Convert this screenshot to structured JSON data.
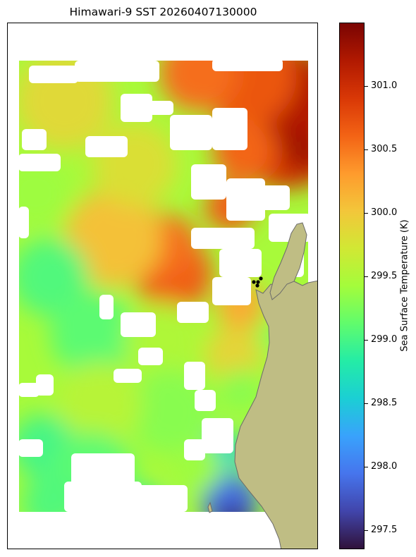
{
  "title": "Himawari-9 SST 20260407130000",
  "colorbar": {
    "label": "Sea Surface Temperature (K)",
    "ticks": [
      "297.5",
      "298.0",
      "298.5",
      "299.0",
      "299.5",
      "300.0",
      "300.5",
      "301.0"
    ],
    "tick_values": [
      297.5,
      298.0,
      298.5,
      299.0,
      299.5,
      300.0,
      300.5,
      301.0
    ],
    "vmin": 297.35,
    "vmax": 301.5,
    "colormap": "turbo",
    "stops": [
      "#30123b",
      "#4145ab",
      "#4675ed",
      "#39a2fc",
      "#1bcfd4",
      "#24eca6",
      "#61fc6c",
      "#a4fc3b",
      "#d1e834",
      "#f3c63a",
      "#fe9b2d",
      "#f36315",
      "#d93806",
      "#b11901",
      "#7a0402"
    ]
  },
  "map": {
    "land_color": "#bfbd84",
    "coast_color": "#6b6b6b",
    "missing_color": "#ffffff",
    "markers_color": "#000000"
  }
}
